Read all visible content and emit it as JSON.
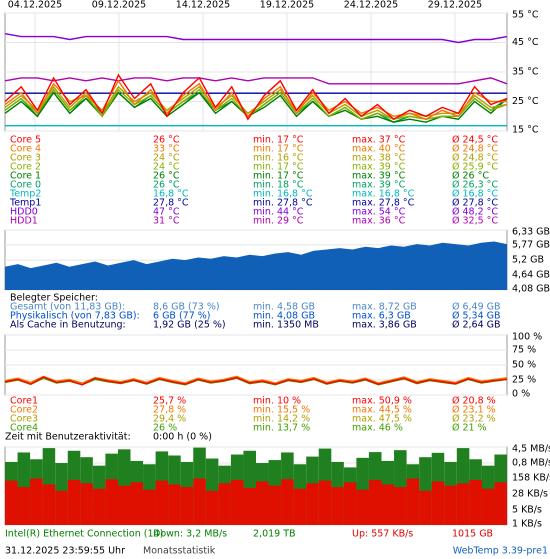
{
  "temperature_chart": {
    "type": "line",
    "x_labels": [
      "04.12.2025",
      "09.12.2025",
      "14.12.2025",
      "19.12.2025",
      "24.12.2025",
      "29.12.2025"
    ],
    "ylim": [
      15,
      55
    ],
    "yticks": [
      {
        "value": 55,
        "label": "55 °C"
      },
      {
        "value": 45,
        "label": "45 °C"
      },
      {
        "value": 35,
        "label": "35 °C"
      },
      {
        "value": 25,
        "label": "25 °C"
      },
      {
        "value": 15,
        "label": "15 °C"
      }
    ],
    "grid": true
  },
  "sensors": [
    {
      "name": "Core 5",
      "current": "26 °C",
      "min": "min. 17 °C",
      "max": "max. 37 °C",
      "avg": "Ø 24,5 °C",
      "color": "#ff0000",
      "values": [
        25,
        30,
        22,
        33,
        24,
        29,
        21,
        34,
        26,
        31,
        20,
        28,
        33,
        23,
        30,
        19,
        27,
        32,
        22,
        29,
        21,
        26,
        20,
        24,
        19,
        22,
        20,
        23,
        21,
        30,
        24,
        26
      ]
    },
    {
      "name": "Core 4",
      "current": "33 °C",
      "min": "min. 17 °C",
      "max": "max. 40 °C",
      "avg": "Ø 24,8 °C",
      "color": "#f07800",
      "values": [
        24,
        28,
        21,
        31,
        25,
        27,
        22,
        32,
        24,
        29,
        21,
        27,
        31,
        22,
        28,
        20,
        26,
        30,
        21,
        28,
        22,
        25,
        21,
        23,
        20,
        21,
        19,
        22,
        20,
        28,
        25,
        25
      ]
    },
    {
      "name": "Core 3",
      "current": "24 °C",
      "min": "min. 16 °C",
      "max": "max. 38 °C",
      "avg": "Ø 24,8 °C",
      "color": "#b0a000",
      "values": [
        23,
        27,
        22,
        30,
        23,
        28,
        21,
        30,
        25,
        28,
        22,
        26,
        30,
        23,
        27,
        21,
        25,
        29,
        22,
        27,
        21,
        24,
        20,
        22,
        19,
        21,
        20,
        21,
        21,
        27,
        23,
        24
      ]
    },
    {
      "name": "Core 2",
      "current": "24 °C",
      "min": "min. 17 °C",
      "max": "max. 39 °C",
      "avg": "Ø 25,9 °C",
      "color": "#88b000",
      "values": [
        22,
        26,
        21,
        29,
        22,
        27,
        20,
        29,
        24,
        27,
        21,
        25,
        29,
        22,
        26,
        20,
        24,
        28,
        21,
        26,
        20,
        23,
        19,
        21,
        19,
        20,
        19,
        20,
        20,
        26,
        22,
        24
      ]
    },
    {
      "name": "Core 1",
      "current": "26 °C",
      "min": "min. 17 °C",
      "max": "max. 39 °C",
      "avg": "Ø 26 °C",
      "color": "#008000",
      "values": [
        21,
        25,
        20,
        28,
        21,
        26,
        20,
        28,
        23,
        26,
        20,
        24,
        28,
        21,
        25,
        20,
        23,
        27,
        20,
        25,
        20,
        22,
        19,
        20,
        18,
        19,
        18,
        20,
        19,
        25,
        21,
        26
      ]
    },
    {
      "name": "Core 0",
      "current": "26 °C",
      "min": "min. 18 °C",
      "max": "max. 39 °C",
      "avg": "Ø 26,3 °C",
      "color": "#00a060",
      "values": [
        22,
        26,
        20,
        29,
        22,
        26,
        21,
        28,
        23,
        27,
        21,
        25,
        28,
        22,
        25,
        20,
        24,
        28,
        21,
        25,
        20,
        23,
        19,
        21,
        18,
        20,
        19,
        20,
        20,
        26,
        22,
        26
      ]
    },
    {
      "name": "Temp2",
      "current": "16,8 °C",
      "min": "min. 16,8 °C",
      "max": "max. 16,8 °C",
      "avg": "Ø 16,8 °C",
      "color": "#00b8c0",
      "values": [
        16.8,
        16.8,
        16.8,
        16.8,
        16.8,
        16.8,
        16.8,
        16.8,
        16.8,
        16.8,
        16.8,
        16.8,
        16.8,
        16.8,
        16.8,
        16.8,
        16.8,
        16.8,
        16.8,
        16.8,
        16.8,
        16.8,
        16.8,
        16.8,
        16.8,
        16.8,
        16.8,
        16.8,
        16.8,
        16.8,
        16.8,
        16.8
      ]
    },
    {
      "name": "Temp1",
      "current": "27,8 °C",
      "min": "min. 27,8 °C",
      "max": "max. 27,8 °C",
      "avg": "Ø 27,8 °C",
      "color": "#0000a0",
      "values": [
        27.8,
        27.8,
        27.8,
        27.8,
        27.8,
        27.8,
        27.8,
        27.8,
        27.8,
        27.8,
        27.8,
        27.8,
        27.8,
        27.8,
        27.8,
        27.8,
        27.8,
        27.8,
        27.8,
        27.8,
        27.8,
        27.8,
        27.8,
        27.8,
        27.8,
        27.8,
        27.8,
        27.8,
        27.8,
        27.8,
        27.8,
        27.8
      ]
    },
    {
      "name": "HDD0",
      "current": "47 °C",
      "min": "min. 44 °C",
      "max": "max. 54 °C",
      "avg": "Ø 48,2 °C",
      "color": "#8000e0",
      "values": [
        48,
        47,
        47,
        47,
        46,
        47,
        47,
        47,
        47,
        47,
        47,
        46,
        46,
        46,
        46,
        46,
        46,
        46,
        46,
        46,
        46,
        46,
        46,
        46,
        46,
        46,
        46,
        46,
        45,
        46,
        46,
        47
      ]
    },
    {
      "name": "HDD1",
      "current": "31 °C",
      "min": "min. 29 °C",
      "max": "max. 36 °C",
      "avg": "Ø 32,5 °C",
      "color": "#b000b0",
      "values": [
        32,
        33,
        33,
        32,
        33,
        32,
        33,
        32,
        33,
        33,
        32,
        33,
        33,
        32,
        33,
        32,
        33,
        33,
        33,
        33,
        31,
        31,
        31,
        31,
        31,
        31,
        31,
        31,
        31,
        32,
        33,
        31
      ]
    }
  ],
  "memory_chart": {
    "type": "area",
    "color": "#1060b8",
    "ylim": [
      4.08,
      6.33
    ],
    "yticks": [
      {
        "value": 6.33,
        "label": "6,33 GB"
      },
      {
        "value": 5.77,
        "label": "5,77 GB"
      },
      {
        "value": 5.2,
        "label": "5,2 GB"
      },
      {
        "value": 4.64,
        "label": "4,64 GB"
      },
      {
        "value": 4.08,
        "label": "4,08 GB"
      }
    ],
    "values": [
      4.95,
      5.05,
      4.9,
      5.0,
      5.1,
      4.95,
      5.05,
      5.15,
      5.0,
      5.1,
      5.2,
      5.05,
      5.15,
      5.25,
      5.2,
      5.3,
      5.25,
      5.35,
      5.3,
      5.4,
      5.35,
      5.45,
      5.5,
      5.4,
      5.55,
      5.6,
      5.65,
      5.6,
      5.7,
      5.65,
      5.75,
      5.7,
      5.8,
      5.75,
      5.85,
      5.8,
      5.75,
      5.85,
      5.9,
      5.8
    ]
  },
  "memory": {
    "title": "Belegter Speicher:",
    "rows": [
      {
        "name": "Gesamt (von 11,83 GB):",
        "current": "8,6 GB (73 %)",
        "min": "min. 4,58 GB",
        "max": "max. 8,72 GB",
        "avg": "Ø 6,49 GB",
        "color": "#4a86c8"
      },
      {
        "name": "Physikalisch (von 7,83 GB):",
        "current": "6 GB (77 %)",
        "min": "min. 4,08 GB",
        "max": "max. 6,3 GB",
        "avg": "Ø 5,34 GB",
        "color": "#0050d0"
      },
      {
        "name": "Als Cache in Benutzung:",
        "current": "1,92 GB (25 %)",
        "min": "min. 1350 MB",
        "max": "max. 3,86 GB",
        "avg": "Ø 2,64 GB",
        "color": "#000060"
      }
    ]
  },
  "cpu_chart": {
    "type": "line",
    "ylim": [
      0,
      100
    ],
    "yticks": [
      {
        "value": 100,
        "label": "100 %"
      },
      {
        "value": 75,
        "label": "75 %"
      },
      {
        "value": 50,
        "label": "50 %"
      },
      {
        "value": 25,
        "label": "25 %"
      },
      {
        "value": 0,
        "label": "0 %"
      }
    ]
  },
  "cores": [
    {
      "name": "Core1",
      "current": "25,7 %",
      "min": "min. 10 %",
      "max": "max. 50,9 %",
      "avg": "Ø 20,8 %",
      "color": "#ff0000",
      "values": [
        22,
        26,
        18,
        30,
        21,
        24,
        17,
        28,
        23,
        20,
        25,
        19,
        27,
        22,
        18,
        26,
        21,
        24,
        29,
        20,
        23,
        18,
        25,
        22,
        27,
        19,
        24,
        21,
        26,
        18,
        23,
        28,
        20,
        25,
        22,
        19,
        27,
        21,
        24,
        26
      ]
    },
    {
      "name": "Core2",
      "current": "27,8 %",
      "min": "min. 15,5 %",
      "max": "max. 44,5 %",
      "avg": "Ø 23,1 %",
      "color": "#f07800",
      "values": [
        24,
        28,
        21,
        31,
        23,
        26,
        20,
        29,
        25,
        22,
        27,
        21,
        29,
        24,
        20,
        28,
        23,
        26,
        31,
        22,
        25,
        20,
        27,
        24,
        29,
        21,
        26,
        23,
        28,
        20,
        25,
        30,
        22,
        27,
        24,
        21,
        29,
        23,
        26,
        28
      ]
    },
    {
      "name": "Core3",
      "current": "29,4 %",
      "min": "min. 14,2 %",
      "max": "max. 47,5 %",
      "avg": "Ø 23,2 %",
      "color": "#b0a000",
      "values": [
        23,
        27,
        20,
        30,
        22,
        25,
        19,
        28,
        24,
        21,
        26,
        20,
        28,
        23,
        19,
        27,
        22,
        25,
        30,
        21,
        24,
        19,
        26,
        23,
        28,
        20,
        25,
        22,
        27,
        19,
        24,
        29,
        21,
        26,
        23,
        20,
        28,
        22,
        25,
        29
      ]
    },
    {
      "name": "Core4",
      "current": "26 %",
      "min": "min. 13,7 %",
      "max": "max. 46 %",
      "avg": "Ø 21 %",
      "color": "#40a000",
      "values": [
        21,
        25,
        18,
        28,
        20,
        23,
        17,
        26,
        22,
        19,
        24,
        18,
        26,
        21,
        17,
        25,
        20,
        23,
        28,
        19,
        22,
        17,
        24,
        21,
        26,
        18,
        23,
        20,
        25,
        17,
        22,
        27,
        19,
        24,
        21,
        18,
        26,
        20,
        23,
        26
      ]
    }
  ],
  "activity": {
    "label": "Zeit mit Benutzeraktivität:",
    "value": "0:00 h (0 %)"
  },
  "network_chart": {
    "type": "bar",
    "log": true,
    "ylim": [
      1,
      4500
    ],
    "yticks": [
      {
        "value": 4500,
        "label": "4,5 MB/s"
      },
      {
        "value": 800,
        "label": "0,8 MB/s"
      },
      {
        "value": 158,
        "label": "158 KB/s"
      },
      {
        "value": 28,
        "label": "28 KB/s"
      },
      {
        "value": 5,
        "label": "5 KB/s"
      },
      {
        "value": 1,
        "label": "1 KB/s"
      }
    ],
    "series": [
      {
        "color": "#208020",
        "values": [
          900,
          2500,
          1200,
          4000,
          800,
          3000,
          1500,
          600,
          2200,
          3500,
          1000,
          700,
          2800,
          1800,
          900,
          4200,
          1300,
          600,
          2000,
          3000,
          800,
          1100,
          2500,
          700,
          1600,
          3800,
          900,
          500,
          1400,
          2600,
          1000,
          3200,
          700,
          1500,
          2400,
          900,
          4000,
          1200,
          600,
          2000
        ]
      },
      {
        "color": "#e01000",
        "values": [
          120,
          60,
          150,
          80,
          40,
          130,
          90,
          50,
          140,
          70,
          100,
          45,
          120,
          80,
          60,
          150,
          40,
          90,
          130,
          55,
          110,
          70,
          140,
          50,
          90,
          120,
          60,
          100,
          45,
          130,
          80,
          60,
          150,
          40,
          110,
          70,
          90,
          130,
          50,
          100
        ]
      }
    ]
  },
  "network": {
    "name": "Intel(R) Ethernet Connection (14)",
    "down": "Down: 3,2 MB/s",
    "down_total": "2,019 TB",
    "up": "Up: 557 KB/s",
    "up_total": "1015 GB",
    "down_color": "#008000",
    "up_color": "#e00000"
  },
  "footer": {
    "timestamp": "31.12.2025 23:59:55 Uhr",
    "link": "Monatsstatistik",
    "version": "WebTemp 3.39-pre1"
  }
}
